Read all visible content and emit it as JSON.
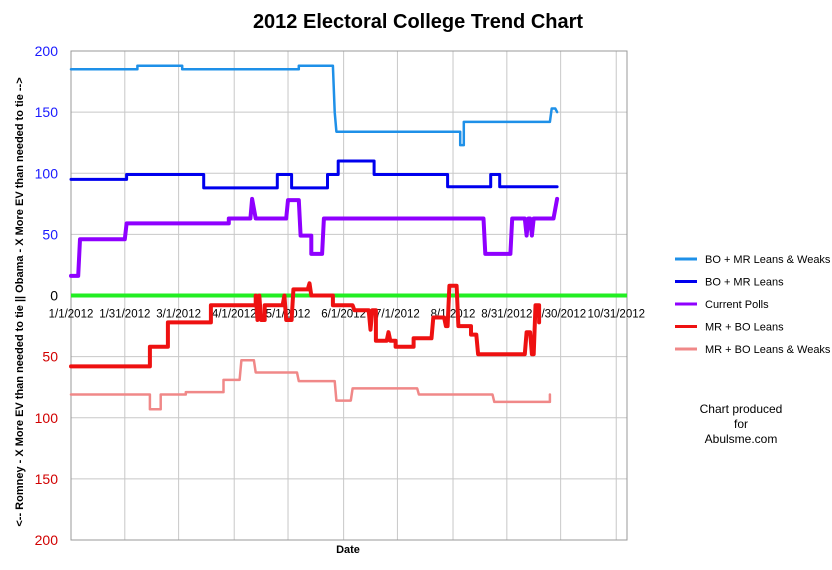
{
  "chart_data": {
    "type": "line",
    "title": "2012 Electoral College Trend Chart",
    "xlabel": "Date",
    "ylabel": "<-- Romney - X More EV than needed to tie || Obama - X More EV than needed to tie -->",
    "x_ticks": [
      "1/1/2012",
      "1/31/2012",
      "3/1/2012",
      "4/1/2012",
      "5/1/2012",
      "6/1/2012",
      "7/1/2012",
      "8/1/2012",
      "8/31/2012",
      "9/30/2012",
      "10/31/2012"
    ],
    "x_range": [
      "2012-01-01",
      "2012-11-06"
    ],
    "upper_ticks": [
      "200",
      "150",
      "100",
      "50"
    ],
    "zero_tick": "0",
    "lower_ticks": [
      "50",
      "100",
      "150",
      "200"
    ],
    "ylim": [
      -200,
      200
    ],
    "grid": true,
    "legend_position": "right",
    "credit_lines": [
      "Chart produced",
      "for",
      "Abulsme.com"
    ],
    "zero_line": {
      "color": "#22ee22"
    },
    "series": [
      {
        "name": "BO + MR Leans & Weaks",
        "color": "#1e90e8",
        "points": [
          [
            "2012-01-01",
            185
          ],
          [
            "2012-02-07",
            185
          ],
          [
            "2012-02-07",
            188
          ],
          [
            "2012-03-03",
            188
          ],
          [
            "2012-03-03",
            185
          ],
          [
            "2012-05-07",
            185
          ],
          [
            "2012-05-07",
            188
          ],
          [
            "2012-05-26",
            188
          ],
          [
            "2012-05-27",
            150
          ],
          [
            "2012-05-28",
            134
          ],
          [
            "2012-08-05",
            134
          ],
          [
            "2012-08-05",
            123
          ],
          [
            "2012-08-07",
            123
          ],
          [
            "2012-08-07",
            142
          ],
          [
            "2012-09-24",
            142
          ],
          [
            "2012-09-25",
            153
          ],
          [
            "2012-09-27",
            153
          ],
          [
            "2012-09-28",
            150
          ]
        ]
      },
      {
        "name": "BO + MR Leans",
        "color": "#0000ee",
        "points": [
          [
            "2012-01-01",
            95
          ],
          [
            "2012-02-01",
            95
          ],
          [
            "2012-02-01",
            99
          ],
          [
            "2012-03-15",
            99
          ],
          [
            "2012-03-15",
            88
          ],
          [
            "2012-04-25",
            88
          ],
          [
            "2012-04-25",
            99
          ],
          [
            "2012-05-03",
            99
          ],
          [
            "2012-05-03",
            88
          ],
          [
            "2012-05-23",
            88
          ],
          [
            "2012-05-23",
            99
          ],
          [
            "2012-05-29",
            99
          ],
          [
            "2012-05-29",
            110
          ],
          [
            "2012-06-18",
            110
          ],
          [
            "2012-06-18",
            99
          ],
          [
            "2012-07-29",
            99
          ],
          [
            "2012-07-29",
            89
          ],
          [
            "2012-08-22",
            89
          ],
          [
            "2012-08-22",
            99
          ],
          [
            "2012-08-27",
            99
          ],
          [
            "2012-08-27",
            89
          ],
          [
            "2012-09-28",
            89
          ]
        ]
      },
      {
        "name": "Current Polls",
        "color": "#8f00ff",
        "points": [
          [
            "2012-01-01",
            16
          ],
          [
            "2012-01-05",
            16
          ],
          [
            "2012-01-06",
            46
          ],
          [
            "2012-01-31",
            46
          ],
          [
            "2012-02-01",
            59
          ],
          [
            "2012-03-29",
            59
          ],
          [
            "2012-03-29",
            63
          ],
          [
            "2012-04-10",
            63
          ],
          [
            "2012-04-11",
            79
          ],
          [
            "2012-04-13",
            63
          ],
          [
            "2012-04-30",
            63
          ],
          [
            "2012-05-01",
            78
          ],
          [
            "2012-05-07",
            78
          ],
          [
            "2012-05-08",
            49
          ],
          [
            "2012-05-14",
            49
          ],
          [
            "2012-05-14",
            34
          ],
          [
            "2012-05-20",
            34
          ],
          [
            "2012-05-21",
            63
          ],
          [
            "2012-08-18",
            63
          ],
          [
            "2012-08-19",
            34
          ],
          [
            "2012-09-02",
            34
          ],
          [
            "2012-09-03",
            63
          ],
          [
            "2012-09-10",
            63
          ],
          [
            "2012-09-11",
            49
          ],
          [
            "2012-09-12",
            63
          ],
          [
            "2012-09-13",
            63
          ],
          [
            "2012-09-14",
            49
          ],
          [
            "2012-09-15",
            63
          ],
          [
            "2012-09-26",
            63
          ],
          [
            "2012-09-28",
            79
          ]
        ]
      },
      {
        "name": "MR + BO Leans",
        "color": "#ee1111",
        "points": [
          [
            "2012-01-01",
            -58
          ],
          [
            "2012-02-14",
            -58
          ],
          [
            "2012-02-14",
            -42
          ],
          [
            "2012-02-24",
            -42
          ],
          [
            "2012-02-24",
            -22
          ],
          [
            "2012-03-19",
            -22
          ],
          [
            "2012-03-19",
            -8
          ],
          [
            "2012-04-13",
            -8
          ],
          [
            "2012-04-13",
            0
          ],
          [
            "2012-04-14",
            -20
          ],
          [
            "2012-04-15",
            0
          ],
          [
            "2012-04-16",
            -20
          ],
          [
            "2012-04-18",
            -20
          ],
          [
            "2012-04-18",
            -8
          ],
          [
            "2012-04-28",
            -8
          ],
          [
            "2012-04-29",
            0
          ],
          [
            "2012-04-30",
            -20
          ],
          [
            "2012-05-03",
            -20
          ],
          [
            "2012-05-04",
            5
          ],
          [
            "2012-05-12",
            5
          ],
          [
            "2012-05-13",
            10
          ],
          [
            "2012-05-14",
            0
          ],
          [
            "2012-05-26",
            0
          ],
          [
            "2012-05-26",
            -8
          ],
          [
            "2012-06-06",
            -8
          ],
          [
            "2012-06-07",
            -12
          ],
          [
            "2012-06-15",
            -12
          ],
          [
            "2012-06-16",
            -28
          ],
          [
            "2012-06-17",
            -12
          ],
          [
            "2012-06-19",
            -12
          ],
          [
            "2012-06-19",
            -37
          ],
          [
            "2012-06-25",
            -37
          ],
          [
            "2012-06-26",
            -30
          ],
          [
            "2012-06-27",
            -37
          ],
          [
            "2012-06-30",
            -37
          ],
          [
            "2012-06-30",
            -42
          ],
          [
            "2012-07-10",
            -42
          ],
          [
            "2012-07-10",
            -35
          ],
          [
            "2012-07-20",
            -35
          ],
          [
            "2012-07-21",
            -18
          ],
          [
            "2012-07-27",
            -18
          ],
          [
            "2012-07-28",
            -25
          ],
          [
            "2012-07-29",
            -25
          ],
          [
            "2012-07-30",
            8
          ],
          [
            "2012-08-03",
            8
          ],
          [
            "2012-08-04",
            -25
          ],
          [
            "2012-08-11",
            -25
          ],
          [
            "2012-08-11",
            -32
          ],
          [
            "2012-08-14",
            -32
          ],
          [
            "2012-08-15",
            -48
          ],
          [
            "2012-09-10",
            -48
          ],
          [
            "2012-09-11",
            -30
          ],
          [
            "2012-09-13",
            -30
          ],
          [
            "2012-09-14",
            -48
          ],
          [
            "2012-09-15",
            -48
          ],
          [
            "2012-09-16",
            -8
          ],
          [
            "2012-09-18",
            -8
          ],
          [
            "2012-09-18",
            -22
          ]
        ]
      },
      {
        "name": "MR + BO Leans & Weaks",
        "color": "#f08888",
        "points": [
          [
            "2012-01-01",
            -81
          ],
          [
            "2012-02-14",
            -81
          ],
          [
            "2012-02-14",
            -93
          ],
          [
            "2012-02-20",
            -93
          ],
          [
            "2012-02-20",
            -81
          ],
          [
            "2012-03-05",
            -81
          ],
          [
            "2012-03-05",
            -79
          ],
          [
            "2012-03-26",
            -79
          ],
          [
            "2012-03-26",
            -69
          ],
          [
            "2012-04-04",
            -69
          ],
          [
            "2012-04-05",
            -53
          ],
          [
            "2012-04-12",
            -53
          ],
          [
            "2012-04-13",
            -63
          ],
          [
            "2012-05-06",
            -63
          ],
          [
            "2012-05-07",
            -70
          ],
          [
            "2012-05-27",
            -70
          ],
          [
            "2012-05-28",
            -86
          ],
          [
            "2012-06-05",
            -86
          ],
          [
            "2012-06-06",
            -76
          ],
          [
            "2012-07-12",
            -76
          ],
          [
            "2012-07-13",
            -81
          ],
          [
            "2012-08-23",
            -81
          ],
          [
            "2012-08-24",
            -87
          ],
          [
            "2012-09-24",
            -87
          ],
          [
            "2012-09-24",
            -81
          ]
        ]
      }
    ]
  }
}
